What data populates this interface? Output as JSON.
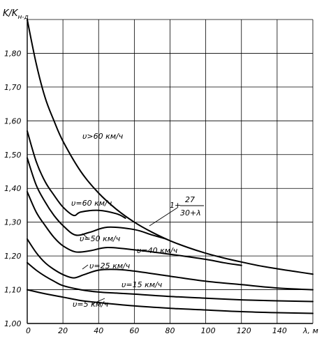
{
  "chart_data": {
    "type": "line",
    "ylabel_main": "K/K",
    "ylabel_sub": "н-д",
    "xlabel": "λ, м",
    "xlim": [
      0,
      160
    ],
    "ylim": [
      1.0,
      1.9
    ],
    "grid": true,
    "x_ticks": [
      "0",
      "20",
      "40",
      "60",
      "80",
      "100",
      "120",
      "140"
    ],
    "y_ticks": [
      "1,00",
      "1,10",
      "1,20",
      "1,30",
      "1,40",
      "1,50",
      "1,60",
      "1,70",
      "1,80"
    ],
    "formula": {
      "prefix": "1+",
      "numerator": "27",
      "denominator": "30+λ"
    },
    "series": [
      {
        "name": "υ>60 км/ч",
        "points": [
          [
            0,
            1.9
          ],
          [
            5,
            1.77
          ],
          [
            10,
            1.669
          ],
          [
            15,
            1.6
          ],
          [
            20,
            1.54
          ],
          [
            30,
            1.45
          ],
          [
            40,
            1.386
          ],
          [
            50,
            1.338
          ],
          [
            60,
            1.3
          ],
          [
            70,
            1.27
          ],
          [
            80,
            1.245
          ],
          [
            90,
            1.225
          ],
          [
            100,
            1.208
          ],
          [
            110,
            1.194
          ],
          [
            120,
            1.182
          ],
          [
            130,
            1.171
          ],
          [
            140,
            1.162
          ],
          [
            150,
            1.154
          ],
          [
            160,
            1.146
          ]
        ]
      },
      {
        "name": "υ=60 км/ч",
        "points": [
          [
            0,
            1.57
          ],
          [
            5,
            1.48
          ],
          [
            10,
            1.42
          ],
          [
            15,
            1.38
          ],
          [
            20,
            1.345
          ],
          [
            26,
            1.32
          ],
          [
            30,
            1.33
          ],
          [
            40,
            1.335
          ],
          [
            50,
            1.325
          ],
          [
            55,
            1.312
          ]
        ]
      },
      {
        "name": "υ=50 км/ч",
        "points": [
          [
            0,
            1.49
          ],
          [
            5,
            1.41
          ],
          [
            10,
            1.36
          ],
          [
            15,
            1.32
          ],
          [
            20,
            1.29
          ],
          [
            27,
            1.262
          ],
          [
            35,
            1.27
          ],
          [
            45,
            1.285
          ],
          [
            60,
            1.278
          ],
          [
            70,
            1.262
          ],
          [
            78,
            1.25
          ]
        ]
      },
      {
        "name": "υ=40 км/ч",
        "points": [
          [
            0,
            1.39
          ],
          [
            5,
            1.33
          ],
          [
            10,
            1.29
          ],
          [
            15,
            1.255
          ],
          [
            20,
            1.23
          ],
          [
            27,
            1.212
          ],
          [
            35,
            1.215
          ],
          [
            45,
            1.225
          ],
          [
            60,
            1.218
          ],
          [
            80,
            1.205
          ],
          [
            100,
            1.19
          ],
          [
            110,
            1.18
          ],
          [
            120,
            1.172
          ]
        ]
      },
      {
        "name": "υ=25 км/ч",
        "points": [
          [
            0,
            1.25
          ],
          [
            5,
            1.21
          ],
          [
            10,
            1.18
          ],
          [
            15,
            1.16
          ],
          [
            20,
            1.145
          ],
          [
            26,
            1.135
          ],
          [
            32,
            1.145
          ],
          [
            40,
            1.158
          ],
          [
            50,
            1.16
          ],
          [
            60,
            1.155
          ],
          [
            80,
            1.14
          ],
          [
            100,
            1.125
          ],
          [
            120,
            1.115
          ],
          [
            140,
            1.105
          ],
          [
            160,
            1.1
          ]
        ]
      },
      {
        "name": "υ=15 км/ч",
        "points": [
          [
            0,
            1.18
          ],
          [
            5,
            1.158
          ],
          [
            10,
            1.14
          ],
          [
            15,
            1.125
          ],
          [
            20,
            1.112
          ],
          [
            30,
            1.1
          ],
          [
            40,
            1.093
          ],
          [
            50,
            1.09
          ],
          [
            60,
            1.087
          ],
          [
            80,
            1.08
          ],
          [
            100,
            1.075
          ],
          [
            120,
            1.07
          ],
          [
            140,
            1.067
          ],
          [
            160,
            1.065
          ]
        ]
      },
      {
        "name": "υ=5 км/ч",
        "points": [
          [
            0,
            1.1
          ],
          [
            10,
            1.088
          ],
          [
            20,
            1.078
          ],
          [
            30,
            1.068
          ],
          [
            40,
            1.062
          ],
          [
            60,
            1.052
          ],
          [
            80,
            1.045
          ],
          [
            100,
            1.04
          ],
          [
            120,
            1.035
          ],
          [
            140,
            1.032
          ],
          [
            160,
            1.03
          ]
        ]
      }
    ]
  }
}
